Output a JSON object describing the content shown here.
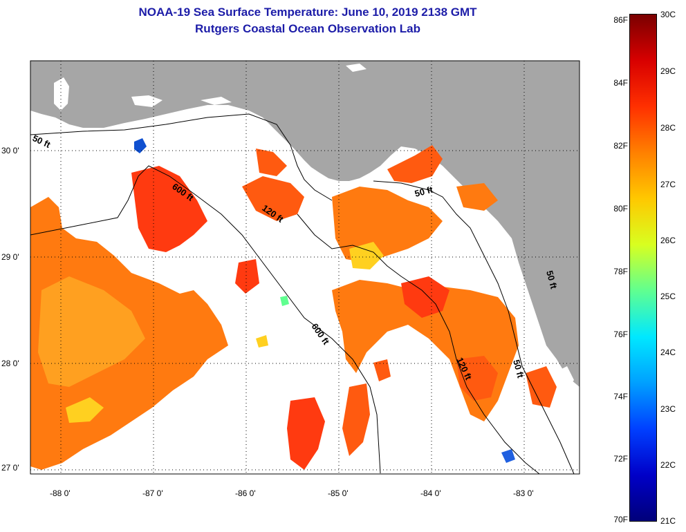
{
  "title": {
    "line1": "NOAA-19 Sea Surface Temperature:  June 10, 2019 2138 GMT",
    "line2": "Rutgers Coastal Ocean Observation Lab"
  },
  "axes": {
    "lon_ticks": [
      "-88 0'",
      "-87 0'",
      "-86 0'",
      "-85 0'",
      "-84 0'",
      "-83 0'"
    ],
    "lat_ticks": [
      "30 0'",
      "29 0'",
      "28 0'",
      "27 0'"
    ]
  },
  "contours": [
    "50 ft",
    "600 ft",
    "120 ft",
    "50 ft",
    "600 ft",
    "120 ft",
    "50 ft",
    "50 ft"
  ],
  "colorbar": {
    "fahrenheit": [
      "86F",
      "84F",
      "82F",
      "80F",
      "78F",
      "76F",
      "74F",
      "72F",
      "70F"
    ],
    "celsius": [
      "30C",
      "29C",
      "28C",
      "27C",
      "26C",
      "25C",
      "24C",
      "23C",
      "22C",
      "21C"
    ],
    "gradient": [
      "#7a0000",
      "#d80000",
      "#ff3000",
      "#ff8000",
      "#ffc800",
      "#d8ff20",
      "#60ff90",
      "#00e8ff",
      "#00a0ff",
      "#0040ff",
      "#0000c8",
      "#00007a"
    ]
  },
  "colors": {
    "land": "#a6a6a6",
    "cloud": "#ffffff",
    "sst_hot": "#ff3a10",
    "sst_warm": "#ff7a10",
    "sst_mid": "#ffa020",
    "sst_cool": "#ffd020",
    "title": "#1c1ca8"
  }
}
